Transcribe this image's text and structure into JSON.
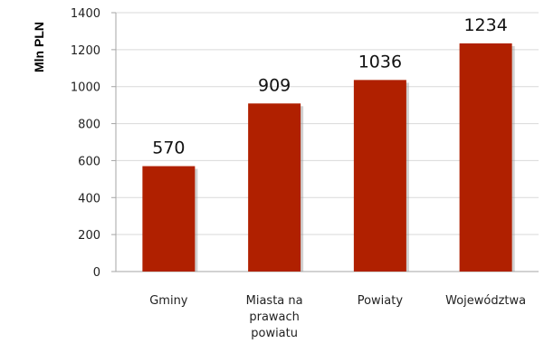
{
  "chart_data": {
    "type": "bar",
    "title": "",
    "xlabel": "",
    "ylabel": "Mln PLN",
    "categories": [
      [
        "Gminy"
      ],
      [
        "Miasta na",
        "prawach",
        "powiatu"
      ],
      [
        "Powiaty"
      ],
      [
        "Województwa"
      ]
    ],
    "values": [
      570,
      909,
      1036,
      1234
    ],
    "ylim": [
      0,
      1400
    ],
    "yticks": [
      0,
      200,
      400,
      600,
      800,
      1000,
      1200,
      1400
    ],
    "grid": true,
    "legend": "none",
    "colors": {
      "bar": "#b02000",
      "bar_shadow": "#9a9a9a",
      "grid": "#d9d9d9",
      "axis": "#a6a6a6"
    }
  }
}
